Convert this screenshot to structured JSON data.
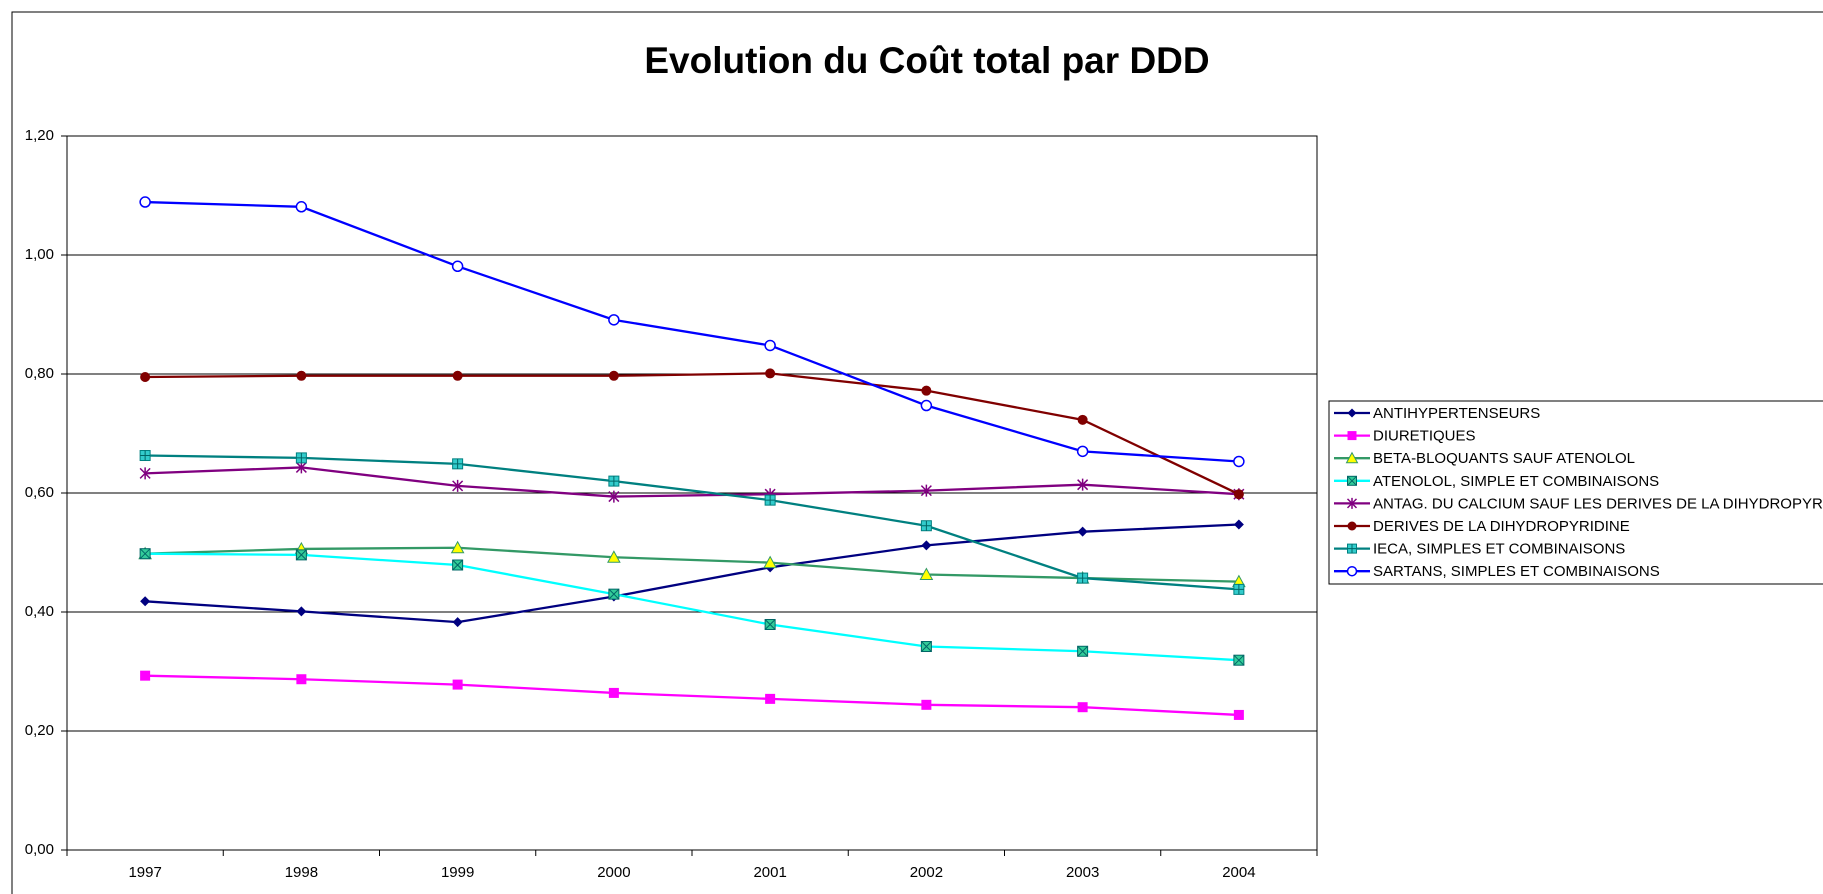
{
  "chart_data": {
    "type": "line",
    "title": "Evolution du Coût total par DDD",
    "categories": [
      "1997",
      "1998",
      "1999",
      "2000",
      "2001",
      "2002",
      "2003",
      "2004"
    ],
    "ylim": [
      0,
      1.2
    ],
    "yticks": [
      {
        "value": 0,
        "label": "0,00"
      },
      {
        "value": 0.2,
        "label": "0,20"
      },
      {
        "value": 0.4,
        "label": "0,40"
      },
      {
        "value": 0.6,
        "label": "0,60"
      },
      {
        "value": 0.8,
        "label": "0,80"
      },
      {
        "value": 1.0,
        "label": "1,00"
      },
      {
        "value": 1.2,
        "label": "1,20"
      }
    ],
    "grid": true,
    "legend": "right",
    "series": [
      {
        "name": "ANTIHYPERTENSEURS",
        "color": "#000080",
        "marker": "diamond",
        "marker_fill": "#000080",
        "values": [
          0.418,
          0.401,
          0.383,
          0.426,
          0.475,
          0.512,
          0.535,
          0.547
        ]
      },
      {
        "name": "DIURETIQUES",
        "color": "#ff00ff",
        "marker": "square",
        "marker_fill": "#ff00ff",
        "values": [
          0.293,
          0.287,
          0.278,
          0.264,
          0.254,
          0.244,
          0.24,
          0.227
        ]
      },
      {
        "name": "BETA-BLOQUANTS SAUF ATENOLOL",
        "color": "#339966",
        "marker": "triangle",
        "marker_fill": "#ffff00",
        "values": [
          0.498,
          0.506,
          0.508,
          0.492,
          0.483,
          0.463,
          0.457,
          0.451
        ]
      },
      {
        "name": "ATENOLOL, SIMPLE ET COMBINAISONS",
        "color": "#00ffff",
        "marker": "xsquare",
        "marker_fill": "#33cc99",
        "values": [
          0.498,
          0.496,
          0.479,
          0.43,
          0.379,
          0.342,
          0.334,
          0.319
        ]
      },
      {
        "name": "ANTAG. DU CALCIUM SAUF LES DERIVES DE LA DIHYDROPYRIDINE",
        "color": "#800080",
        "marker": "star",
        "marker_fill": "#800080",
        "values": [
          0.633,
          0.643,
          0.612,
          0.594,
          0.598,
          0.604,
          0.614,
          0.598
        ]
      },
      {
        "name": "DERIVES DE LA DIHYDROPYRIDINE",
        "color": "#800000",
        "marker": "circle",
        "marker_fill": "#800000",
        "values": [
          0.795,
          0.797,
          0.797,
          0.797,
          0.801,
          0.772,
          0.723,
          0.598
        ]
      },
      {
        "name": "IECA, SIMPLES ET COMBINAISONS",
        "color": "#008080",
        "marker": "plussquare",
        "marker_fill": "#33cccc",
        "values": [
          0.663,
          0.659,
          0.649,
          0.62,
          0.588,
          0.545,
          0.457,
          0.438
        ]
      },
      {
        "name": "SARTANS, SIMPLES ET COMBINAISONS",
        "color": "#0000ff",
        "marker": "opencircle",
        "marker_fill": "#ffffff",
        "values": [
          1.089,
          1.081,
          0.981,
          0.891,
          0.848,
          0.747,
          0.67,
          0.653
        ]
      }
    ]
  }
}
